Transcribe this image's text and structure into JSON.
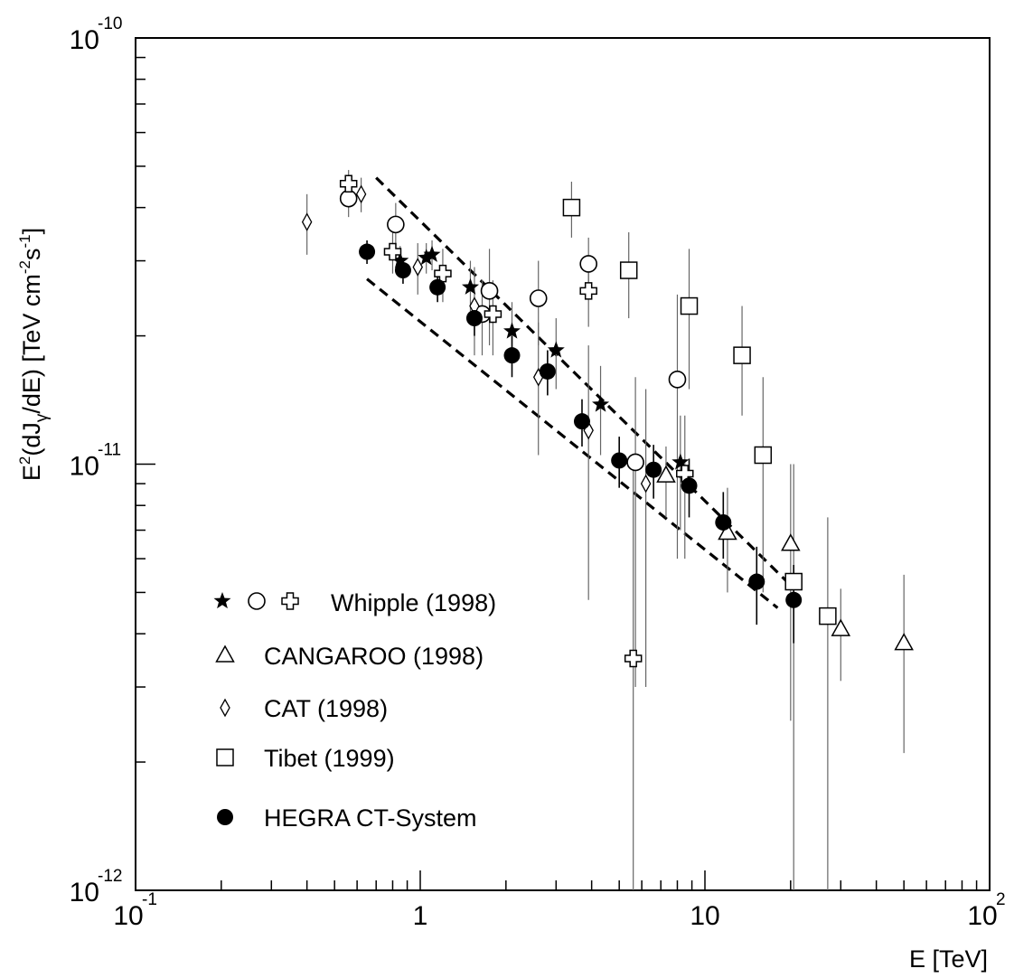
{
  "chart_data": {
    "type": "scatter",
    "x_scale": "log",
    "y_scale": "log",
    "xlim": [
      0.1,
      100
    ],
    "ylim": [
      1e-12,
      1e-10
    ],
    "xlabel": "E [TeV]",
    "ylabel": {
      "a": "E",
      "b": "2",
      "c": "(dJ",
      "d": "γ",
      "e": "/dE) [TeV cm",
      "f": "-2",
      "g": "s",
      "h": "-1",
      "i": "]"
    },
    "x_ticks": [
      {
        "id": "xt0",
        "base": "10",
        "exp": "-1",
        "value": 0.1
      },
      {
        "id": "xt1",
        "base": "1",
        "exp": "",
        "value": 1
      },
      {
        "id": "xt2",
        "base": "10",
        "exp": "",
        "value": 10
      },
      {
        "id": "xt3",
        "base": "10",
        "exp": "2",
        "value": 100
      }
    ],
    "y_ticks": [
      {
        "id": "yt0",
        "base": "10",
        "exp": "-10",
        "value": 1e-10
      },
      {
        "id": "yt1",
        "base": "10",
        "exp": "-11",
        "value": 1e-11
      },
      {
        "id": "yt2",
        "base": "10",
        "exp": "-12",
        "value": 1e-12
      }
    ],
    "grid": false,
    "legend_position": "bottom-left",
    "legend": [
      {
        "id": "whipple",
        "label": "Whipple (1998)",
        "markers": [
          "star",
          "circle",
          "cross"
        ]
      },
      {
        "id": "cangaroo",
        "label": "CANGAROO (1998)",
        "markers": [
          "triangle"
        ]
      },
      {
        "id": "cat",
        "label": "CAT (1998)",
        "markers": [
          "diamond"
        ]
      },
      {
        "id": "tibet",
        "label": "Tibet (1999)",
        "markers": [
          "square"
        ]
      },
      {
        "id": "hegra",
        "label": "HEGRA CT-System",
        "markers": [
          "dot"
        ]
      }
    ],
    "series": [
      {
        "id": "whipple-star",
        "marker": "star",
        "points": [
          {
            "x": 0.85,
            "y": 3e-11,
            "lo": 2.75e-11,
            "hi": 3.25e-11
          },
          {
            "x": 1.05,
            "y": 3.05e-11,
            "lo": 2.8e-11,
            "hi": 3.3e-11
          },
          {
            "x": 1.1,
            "y": 3.1e-11,
            "lo": 2.85e-11,
            "hi": 3.35e-11
          },
          {
            "x": 1.5,
            "y": 2.6e-11,
            "lo": 2.2e-11,
            "hi": 3e-11
          },
          {
            "x": 2.1,
            "y": 2.05e-11,
            "lo": 1.7e-11,
            "hi": 2.4e-11
          },
          {
            "x": 3.0,
            "y": 1.85e-11,
            "lo": 1.5e-11,
            "hi": 2.2e-11
          },
          {
            "x": 4.3,
            "y": 1.38e-11,
            "lo": 1.05e-11,
            "hi": 1.7e-11
          },
          {
            "x": 8.2,
            "y": 1.01e-11,
            "lo": 7e-12,
            "hi": 1.3e-11
          }
        ]
      },
      {
        "id": "whipple-circle",
        "marker": "circle",
        "points": [
          {
            "x": 0.56,
            "y": 4.2e-11,
            "lo": 3.8e-11,
            "hi": 4.6e-11
          },
          {
            "x": 0.82,
            "y": 3.65e-11,
            "lo": 3.2e-11,
            "hi": 4.1e-11
          },
          {
            "x": 1.65,
            "y": 2.25e-11,
            "lo": 1.8e-11,
            "hi": 2.7e-11
          },
          {
            "x": 1.75,
            "y": 2.55e-11,
            "lo": 1.9e-11,
            "hi": 3.2e-11
          },
          {
            "x": 2.6,
            "y": 2.45e-11,
            "lo": 1.9e-11,
            "hi": 3e-11
          },
          {
            "x": 3.9,
            "y": 2.95e-11,
            "lo": 2.5e-11,
            "hi": 3.4e-11
          },
          {
            "x": 8.0,
            "y": 1.58e-11,
            "lo": 6e-12,
            "hi": 2.5e-11
          },
          {
            "x": 5.7,
            "y": 1.01e-11,
            "lo": 3e-12,
            "hi": 1.6e-11
          }
        ]
      },
      {
        "id": "whipple-cross",
        "marker": "cross",
        "points": [
          {
            "x": 0.56,
            "y": 4.55e-11,
            "lo": 4.2e-11,
            "hi": 4.9e-11
          },
          {
            "x": 0.8,
            "y": 3.15e-11,
            "lo": 2.8e-11,
            "hi": 3.5e-11
          },
          {
            "x": 1.2,
            "y": 2.8e-11,
            "lo": 2.4e-11,
            "hi": 3.2e-11
          },
          {
            "x": 1.8,
            "y": 2.25e-11,
            "lo": 1.8e-11,
            "hi": 2.7e-11
          },
          {
            "x": 3.9,
            "y": 2.55e-11,
            "lo": 2.1e-11,
            "hi": 3e-11
          },
          {
            "x": 5.6,
            "y": 3.5e-12,
            "lo": 1e-12,
            "hi": 1e-11
          },
          {
            "x": 8.5,
            "y": 9.5e-12,
            "lo": 6e-12,
            "hi": 1.3e-11
          }
        ]
      },
      {
        "id": "cangaroo",
        "marker": "triangle",
        "points": [
          {
            "x": 7.3,
            "y": 9.4e-12,
            "lo": 7.5e-12,
            "hi": 1.1e-11
          },
          {
            "x": 12.0,
            "y": 6.9e-12,
            "lo": 5e-12,
            "hi": 8.8e-12
          },
          {
            "x": 20.0,
            "y": 6.5e-12,
            "lo": 2.5e-12,
            "hi": 1e-11
          },
          {
            "x": 30.0,
            "y": 4.1e-12,
            "lo": 3.1e-12,
            "hi": 5.1e-12
          },
          {
            "x": 50.0,
            "y": 3.8e-12,
            "lo": 2.1e-12,
            "hi": 5.5e-12
          }
        ]
      },
      {
        "id": "cat",
        "marker": "diamond",
        "points": [
          {
            "x": 0.4,
            "y": 3.7e-11,
            "lo": 3.1e-11,
            "hi": 4.3e-11
          },
          {
            "x": 0.62,
            "y": 4.3e-11,
            "lo": 3.9e-11,
            "hi": 4.7e-11
          },
          {
            "x": 0.98,
            "y": 2.9e-11,
            "lo": 2.5e-11,
            "hi": 3.3e-11
          },
          {
            "x": 1.55,
            "y": 2.35e-11,
            "lo": 1.8e-11,
            "hi": 2.9e-11
          },
          {
            "x": 2.6,
            "y": 1.6e-11,
            "lo": 1.05e-11,
            "hi": 2.15e-11
          },
          {
            "x": 3.9,
            "y": 1.2e-11,
            "lo": 4.8e-12,
            "hi": 1.9e-11
          },
          {
            "x": 6.2,
            "y": 9e-12,
            "lo": 3e-12,
            "hi": 1.5e-11
          }
        ]
      },
      {
        "id": "tibet",
        "marker": "square",
        "points": [
          {
            "x": 3.4,
            "y": 4e-11,
            "lo": 3.4e-11,
            "hi": 4.6e-11
          },
          {
            "x": 5.4,
            "y": 2.85e-11,
            "lo": 2.2e-11,
            "hi": 3.5e-11
          },
          {
            "x": 8.8,
            "y": 2.35e-11,
            "lo": 1.5e-11,
            "hi": 3.2e-11
          },
          {
            "x": 13.5,
            "y": 1.8e-11,
            "lo": 1.3e-11,
            "hi": 2.35e-11
          },
          {
            "x": 16.0,
            "y": 1.05e-11,
            "lo": 5e-12,
            "hi": 1.6e-11
          },
          {
            "x": 20.5,
            "y": 5.3e-12,
            "lo": 1e-12,
            "hi": 1e-11
          },
          {
            "x": 27.0,
            "y": 4.4e-12,
            "lo": 1e-12,
            "hi": 7.5e-12
          }
        ]
      },
      {
        "id": "hegra",
        "marker": "dot",
        "points": [
          {
            "x": 0.65,
            "y": 3.15e-11,
            "lo": 2.95e-11,
            "hi": 3.35e-11
          },
          {
            "x": 0.87,
            "y": 2.85e-11,
            "lo": 2.65e-11,
            "hi": 3.05e-11
          },
          {
            "x": 1.15,
            "y": 2.6e-11,
            "lo": 2.4e-11,
            "hi": 2.8e-11
          },
          {
            "x": 1.55,
            "y": 2.2e-11,
            "lo": 2e-11,
            "hi": 2.4e-11
          },
          {
            "x": 2.1,
            "y": 1.8e-11,
            "lo": 1.6e-11,
            "hi": 2e-11
          },
          {
            "x": 2.8,
            "y": 1.65e-11,
            "lo": 1.45e-11,
            "hi": 1.85e-11
          },
          {
            "x": 3.7,
            "y": 1.26e-11,
            "lo": 1.1e-11,
            "hi": 1.42e-11
          },
          {
            "x": 5.0,
            "y": 1.02e-11,
            "lo": 8.8e-12,
            "hi": 1.16e-11
          },
          {
            "x": 6.6,
            "y": 9.7e-12,
            "lo": 8.3e-12,
            "hi": 1.11e-11
          },
          {
            "x": 8.8,
            "y": 8.9e-12,
            "lo": 7.5e-12,
            "hi": 1.03e-11
          },
          {
            "x": 11.6,
            "y": 7.3e-12,
            "lo": 6e-12,
            "hi": 8.6e-12
          },
          {
            "x": 15.2,
            "y": 5.3e-12,
            "lo": 4.2e-12,
            "hi": 6.4e-12
          },
          {
            "x": 20.5,
            "y": 4.8e-12,
            "lo": 3.8e-12,
            "hi": 5.8e-12
          }
        ]
      }
    ],
    "fit_bands": [
      {
        "id": "upper",
        "x": [
          0.7,
          20.0
        ],
        "y": [
          4.7e-11,
          5.2e-12
        ]
      },
      {
        "id": "lower",
        "x": [
          0.65,
          18.0
        ],
        "y": [
          2.72e-11,
          4.6e-12
        ]
      }
    ]
  }
}
